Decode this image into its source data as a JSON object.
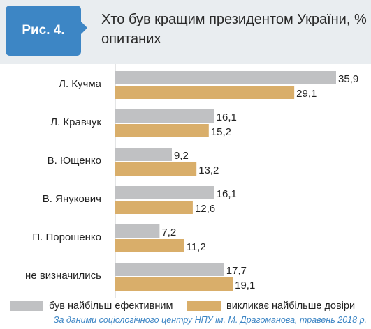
{
  "figure_label": "Рис. 4.",
  "title": "Хто був кращим президентом України, % опитаних",
  "colors": {
    "badge": "#3d86c5",
    "header_bg": "#e9edf0",
    "series_effective": "#c0c1c3",
    "series_trust": "#d9ae6a",
    "source_text": "#3d86c5"
  },
  "chart_data": {
    "type": "bar",
    "orientation": "horizontal",
    "categories": [
      "Л. Кучма",
      "Л. Кравчук",
      "В. Ющенко",
      "В. Янукович",
      "П. Порошенко",
      "не визначились"
    ],
    "series": [
      {
        "name": "був найбільш ефективним",
        "values": [
          35.9,
          16.1,
          9.2,
          16.1,
          7.2,
          17.7
        ],
        "labels": [
          "35,9",
          "16,1",
          "9,2",
          "16,1",
          "7,2",
          "17,7"
        ]
      },
      {
        "name": "викликає найбільше довіри",
        "values": [
          29.1,
          15.2,
          13.2,
          12.6,
          11.2,
          19.1
        ],
        "labels": [
          "29,1",
          "15,2",
          "13,2",
          "12,6",
          "11,2",
          "19,1"
        ]
      }
    ],
    "xlim": [
      0,
      35.9
    ],
    "grid": false,
    "legend_position": "bottom"
  },
  "legend": [
    {
      "label": "був найбільш ефективним"
    },
    {
      "label": "викликає найбільше довіри"
    }
  ],
  "source": "За даними соціологічного центру НПУ ім. М. Драгоманова, травень 2018 р."
}
